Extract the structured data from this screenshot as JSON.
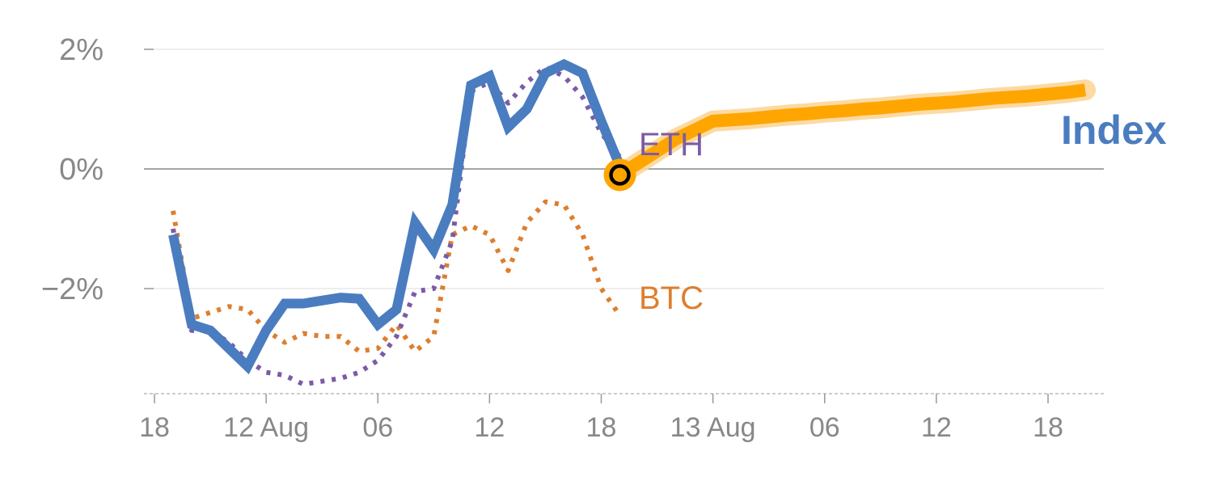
{
  "chart_data": {
    "type": "line",
    "ylim": [
      -3.7,
      2.4
    ],
    "y_ticks": [
      {
        "value": 2,
        "label": "2%"
      },
      {
        "value": 0,
        "label": "0%"
      },
      {
        "value": -2,
        "label": "−2%"
      }
    ],
    "x_ticks": [
      {
        "value": 0,
        "label": "18"
      },
      {
        "value": 6,
        "label": "12 Aug"
      },
      {
        "value": 12,
        "label": "06"
      },
      {
        "value": 18,
        "label": "12"
      },
      {
        "value": 24,
        "label": "18"
      },
      {
        "value": 30,
        "label": "13 Aug"
      },
      {
        "value": 36,
        "label": "06"
      },
      {
        "value": 42,
        "label": "12"
      },
      {
        "value": 48,
        "label": "18"
      }
    ],
    "xlim": [
      0,
      51
    ],
    "grid": true,
    "colors": {
      "index": "#4a7cc0",
      "eth": "#7b5ba6",
      "btc": "#dd7f2f",
      "forecast": "#ffa500",
      "forecast_halo": "#fcd699",
      "axis": "#999999",
      "zero_line": "#888888",
      "grid": "#e8e8e8"
    },
    "series": [
      {
        "name": "Index",
        "key": "index",
        "style": "solid",
        "x": [
          1,
          2,
          3,
          4,
          5,
          6,
          7,
          8,
          9,
          10,
          11,
          12,
          13,
          14,
          15,
          16,
          17,
          18,
          19,
          20,
          21,
          22,
          23,
          24,
          25
        ],
        "y": [
          -1.1,
          -2.6,
          -2.7,
          -3.0,
          -3.3,
          -2.7,
          -2.25,
          -2.25,
          -2.2,
          -2.15,
          -2.17,
          -2.6,
          -2.35,
          -0.9,
          -1.35,
          -0.6,
          1.4,
          1.55,
          0.7,
          1.0,
          1.6,
          1.75,
          1.6,
          0.8,
          0.05
        ]
      },
      {
        "name": "ETH",
        "key": "eth",
        "style": "dotted",
        "x": [
          1,
          2,
          3,
          4,
          5,
          6,
          7,
          8,
          9,
          10,
          11,
          12,
          13,
          14,
          15,
          16,
          17,
          18,
          19,
          20,
          21,
          22,
          23,
          24,
          25
        ],
        "y": [
          -1.0,
          -2.7,
          -2.7,
          -2.9,
          -3.2,
          -3.4,
          -3.45,
          -3.6,
          -3.55,
          -3.5,
          -3.4,
          -3.2,
          -2.8,
          -2.05,
          -2.0,
          -1.2,
          1.3,
          1.45,
          1.1,
          1.45,
          1.7,
          1.55,
          1.2,
          0.6,
          0.2
        ]
      },
      {
        "name": "BTC",
        "key": "btc",
        "style": "dotted",
        "x": [
          1,
          2,
          3,
          4,
          5,
          6,
          7,
          8,
          9,
          10,
          11,
          12,
          13,
          14,
          15,
          16,
          17,
          18,
          19,
          20,
          21,
          22,
          23,
          24,
          25
        ],
        "y": [
          -0.7,
          -2.5,
          -2.4,
          -2.3,
          -2.35,
          -2.7,
          -2.9,
          -2.75,
          -2.8,
          -2.8,
          -3.05,
          -3.0,
          -2.6,
          -3.05,
          -2.8,
          -1.1,
          -0.95,
          -1.1,
          -1.7,
          -0.9,
          -0.55,
          -0.6,
          -1.1,
          -2.0,
          -2.45
        ]
      },
      {
        "name": "Index",
        "key": "forecast",
        "style": "band",
        "x": [
          25,
          26,
          27,
          28,
          29,
          30,
          31,
          32,
          33,
          34,
          35,
          36,
          37,
          38,
          39,
          40,
          41,
          42,
          43,
          44,
          45,
          46,
          47,
          48,
          49,
          50
        ],
        "y": [
          -0.1,
          0.1,
          0.3,
          0.5,
          0.65,
          0.8,
          0.82,
          0.84,
          0.87,
          0.9,
          0.92,
          0.95,
          0.97,
          1.0,
          1.02,
          1.05,
          1.08,
          1.1,
          1.12,
          1.15,
          1.18,
          1.2,
          1.22,
          1.25,
          1.28,
          1.32
        ]
      }
    ],
    "labels": {
      "eth": "ETH",
      "btc": "BTC",
      "index": "Index"
    },
    "marker": {
      "x": 25,
      "y": -0.1
    }
  }
}
